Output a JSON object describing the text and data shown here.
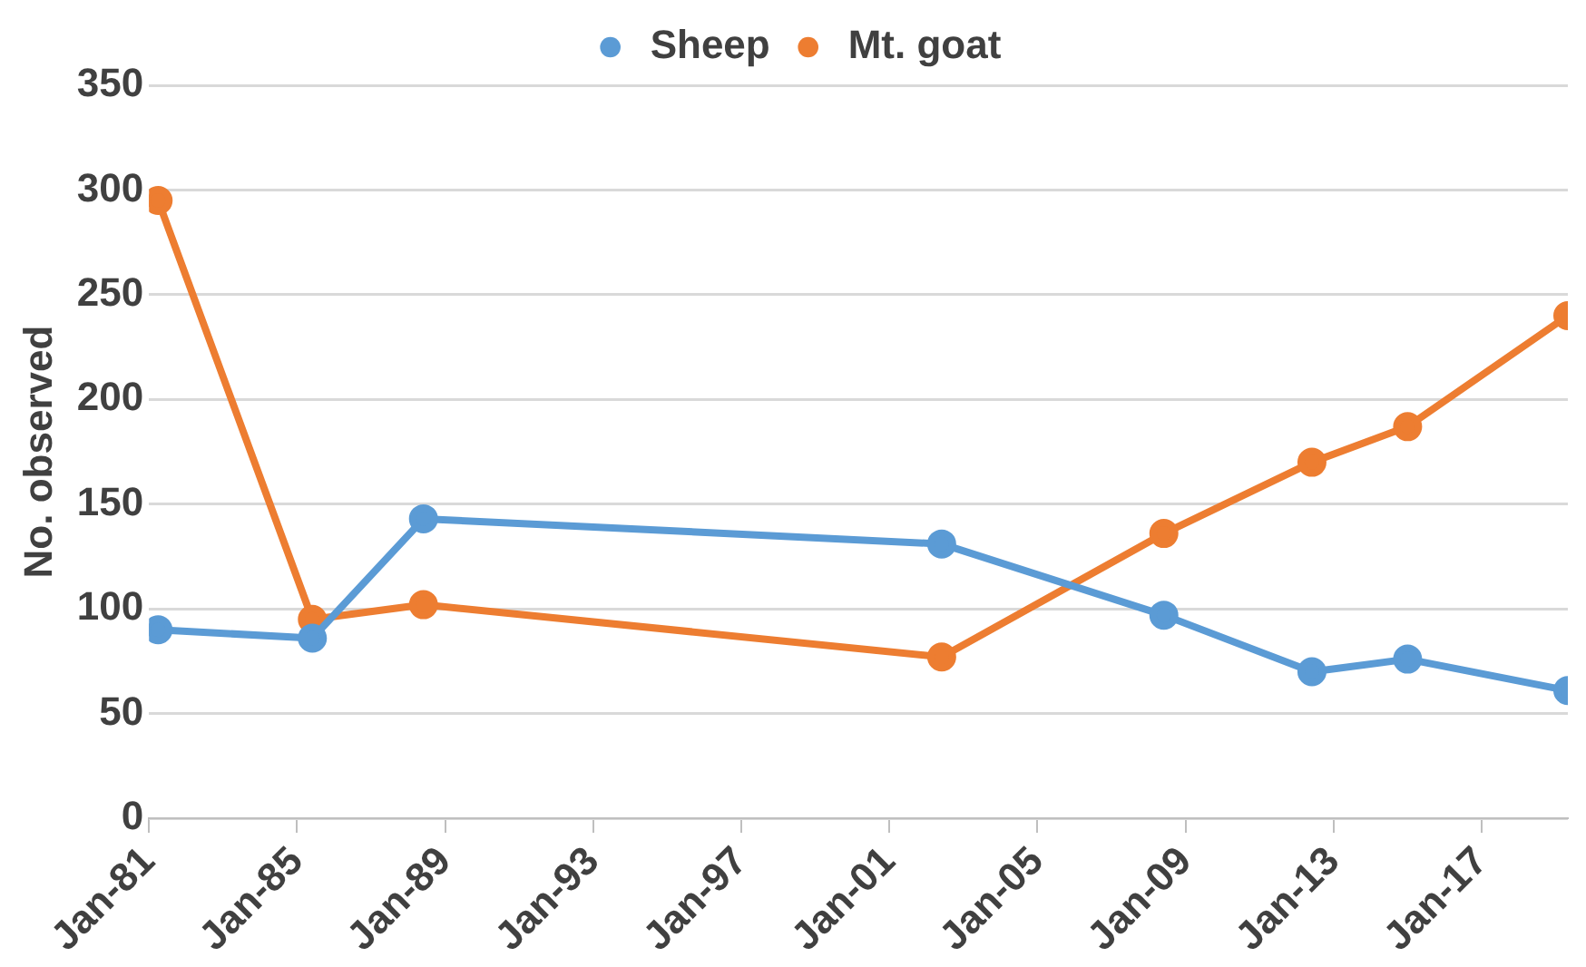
{
  "chart_data": {
    "type": "line",
    "ylabel": "No. observed",
    "x": [
      "1981-04",
      "1985-06",
      "1988-06",
      "2002-06",
      "2008-06",
      "2012-06",
      "2015-01",
      "2019-05"
    ],
    "series": [
      {
        "name": "Sheep",
        "color": "#5b9bd5",
        "values": [
          90,
          86,
          143,
          131,
          97,
          70,
          76,
          61
        ]
      },
      {
        "name": "Mt. goat",
        "color": "#ed7d31",
        "values": [
          295,
          95,
          102,
          77,
          136,
          170,
          187,
          240
        ]
      }
    ],
    "xlim": [
      "1981-01",
      "2019-05"
    ],
    "xticks": [
      {
        "value": "1981-01",
        "label": "Jan-81"
      },
      {
        "value": "1985-01",
        "label": "Jan-85"
      },
      {
        "value": "1989-01",
        "label": "Jan-89"
      },
      {
        "value": "1993-01",
        "label": "Jan-93"
      },
      {
        "value": "1997-01",
        "label": "Jan-97"
      },
      {
        "value": "2001-01",
        "label": "Jan-01"
      },
      {
        "value": "2005-01",
        "label": "Jan-05"
      },
      {
        "value": "2009-01",
        "label": "Jan-09"
      },
      {
        "value": "2013-01",
        "label": "Jan-13"
      },
      {
        "value": "2017-01",
        "label": "Jan-17"
      }
    ],
    "ylim": [
      0,
      350
    ],
    "yticks": [
      0,
      50,
      100,
      150,
      200,
      250,
      300,
      350
    ],
    "grid": "y",
    "legend": "top",
    "marker": "circle",
    "line_style": "solid"
  }
}
